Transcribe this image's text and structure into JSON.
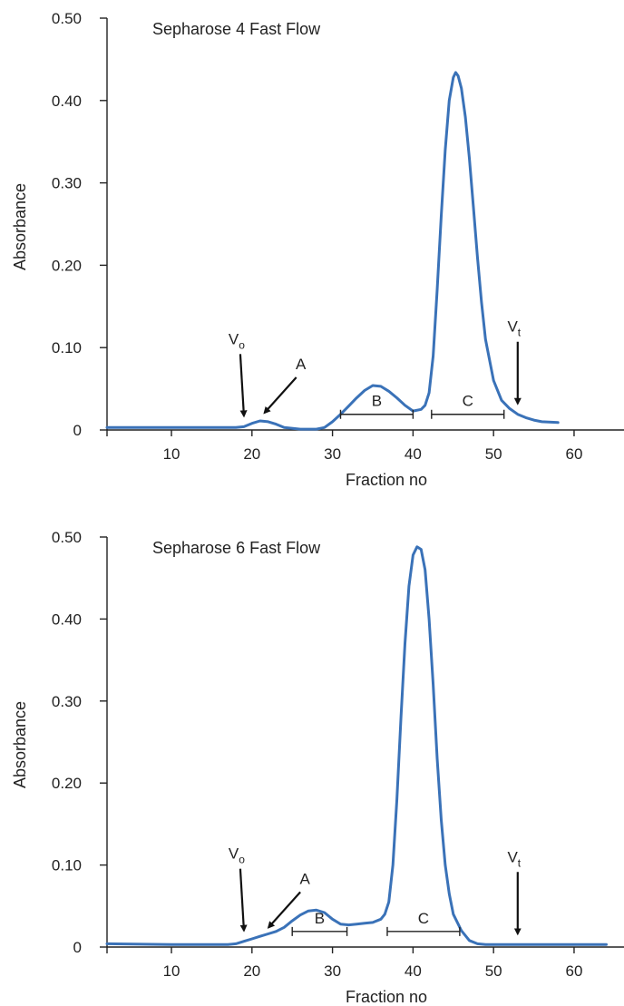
{
  "colors": {
    "curve": "#3a72b8",
    "ink": "#222222"
  },
  "chart_data": [
    {
      "type": "line",
      "title": "Sepharose 4 Fast Flow",
      "xlabel": "Fraction no",
      "ylabel": "Absorbance",
      "xlim": [
        0,
        64
      ],
      "ylim": [
        0,
        0.5
      ],
      "x_ticks": [
        10,
        20,
        30,
        40,
        50,
        60
      ],
      "y_ticks": [
        {
          "value": 0,
          "label": "0"
        },
        {
          "value": 0.1,
          "label": "0.10"
        },
        {
          "value": 0.2,
          "label": "0.20"
        },
        {
          "value": 0.3,
          "label": "0.30"
        },
        {
          "value": 0.4,
          "label": "0.40"
        },
        {
          "value": 0.5,
          "label": "0.50"
        }
      ],
      "grid": false,
      "series": [
        {
          "x": [
            2,
            10,
            17,
            18,
            19,
            20,
            21,
            22,
            23,
            24,
            26,
            28,
            29,
            30,
            31,
            32,
            33,
            34,
            35,
            36,
            37,
            38,
            39,
            40,
            41,
            41.5,
            42,
            42.5,
            43,
            43.5,
            44,
            44.5,
            45,
            45.3,
            45.6,
            46,
            46.5,
            47,
            47.5,
            48,
            48.5,
            49,
            50,
            51,
            52,
            53,
            54,
            55,
            56,
            58
          ],
          "y": [
            0.003,
            0.003,
            0.003,
            0.003,
            0.004,
            0.008,
            0.011,
            0.01,
            0.007,
            0.003,
            0.001,
            0.001,
            0.003,
            0.01,
            0.019,
            0.029,
            0.039,
            0.048,
            0.054,
            0.053,
            0.047,
            0.039,
            0.03,
            0.023,
            0.025,
            0.03,
            0.045,
            0.09,
            0.17,
            0.26,
            0.34,
            0.4,
            0.428,
            0.434,
            0.43,
            0.415,
            0.38,
            0.33,
            0.27,
            0.21,
            0.155,
            0.11,
            0.06,
            0.036,
            0.026,
            0.019,
            0.015,
            0.012,
            0.01,
            0.009
          ]
        }
      ],
      "annotations": [
        {
          "label": "V",
          "sub": "o",
          "x": 19,
          "y": 0.004,
          "type": "arrow-down"
        },
        {
          "label": "A",
          "x": 21,
          "y": 0.011,
          "type": "arrow-diag"
        },
        {
          "label": "V",
          "sub": "t",
          "x": 53,
          "y": 0.019,
          "type": "arrow-down"
        }
      ],
      "ranges": [
        {
          "label": "B",
          "x1": 31,
          "x2": 40
        },
        {
          "label": "C",
          "x1": 42.3,
          "x2": 51.3
        }
      ]
    },
    {
      "type": "line",
      "title": "Sepharose 6 Fast Flow",
      "xlabel": "Fraction no",
      "ylabel": "Absorbance",
      "xlim": [
        0,
        64
      ],
      "ylim": [
        0,
        0.5
      ],
      "x_ticks": [
        10,
        20,
        30,
        40,
        50,
        60
      ],
      "y_ticks": [
        {
          "value": 0,
          "label": "0"
        },
        {
          "value": 0.1,
          "label": "0.10"
        },
        {
          "value": 0.2,
          "label": "0.20"
        },
        {
          "value": 0.3,
          "label": "0.30"
        },
        {
          "value": 0.4,
          "label": "0.40"
        },
        {
          "value": 0.5,
          "label": "0.50"
        }
      ],
      "grid": false,
      "series": [
        {
          "x": [
            2,
            10,
            17,
            18,
            19,
            20,
            21,
            22,
            23,
            24,
            25,
            26,
            27,
            28,
            29,
            30,
            31,
            32,
            33,
            34,
            35,
            36,
            36.5,
            37,
            37.5,
            38,
            38.5,
            39,
            39.5,
            40,
            40.5,
            41,
            41.5,
            42,
            42.5,
            43,
            43.5,
            44,
            44.5,
            45,
            46,
            47,
            48,
            49,
            50,
            55,
            64
          ],
          "y": [
            0.004,
            0.003,
            0.003,
            0.004,
            0.007,
            0.01,
            0.013,
            0.016,
            0.019,
            0.024,
            0.032,
            0.039,
            0.044,
            0.045,
            0.042,
            0.034,
            0.028,
            0.027,
            0.028,
            0.029,
            0.03,
            0.034,
            0.04,
            0.055,
            0.1,
            0.18,
            0.28,
            0.37,
            0.44,
            0.478,
            0.488,
            0.485,
            0.46,
            0.4,
            0.32,
            0.23,
            0.155,
            0.1,
            0.065,
            0.04,
            0.02,
            0.008,
            0.004,
            0.003,
            0.003,
            0.003,
            0.003
          ]
        }
      ],
      "annotations": [
        {
          "label": "V",
          "sub": "o",
          "x": 19,
          "y": 0.007,
          "type": "arrow-down"
        },
        {
          "label": "A",
          "x": 21.5,
          "y": 0.014,
          "type": "arrow-diag"
        },
        {
          "label": "V",
          "sub": "t",
          "x": 53,
          "y": 0.003,
          "type": "arrow-down"
        }
      ],
      "ranges": [
        {
          "label": "B",
          "x1": 25,
          "x2": 31.8
        },
        {
          "label": "C",
          "x1": 36.8,
          "x2": 45.8
        }
      ]
    }
  ]
}
